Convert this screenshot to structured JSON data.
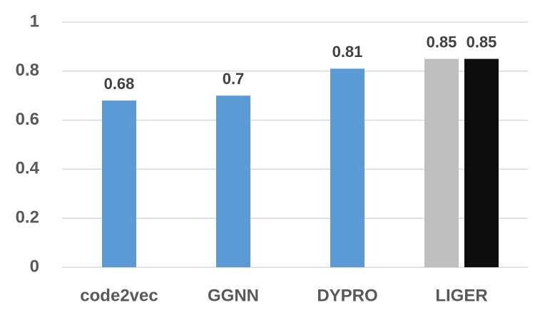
{
  "chart_data": {
    "type": "bar",
    "categories": [
      "code2vec",
      "GGNN",
      "DYPRO",
      "LIGER"
    ],
    "series": [
      {
        "color": "#5b9bd5",
        "values": [
          0.68,
          0.7,
          0.81,
          null
        ]
      },
      {
        "color": "#bfbfbf",
        "values": [
          null,
          null,
          null,
          0.85
        ]
      },
      {
        "color": "#0d0d0d",
        "values": [
          null,
          null,
          null,
          0.85
        ]
      }
    ],
    "ylim": [
      0,
      1
    ],
    "yticks": [
      0,
      0.2,
      0.4,
      0.6,
      0.8,
      1
    ],
    "grid": true
  }
}
